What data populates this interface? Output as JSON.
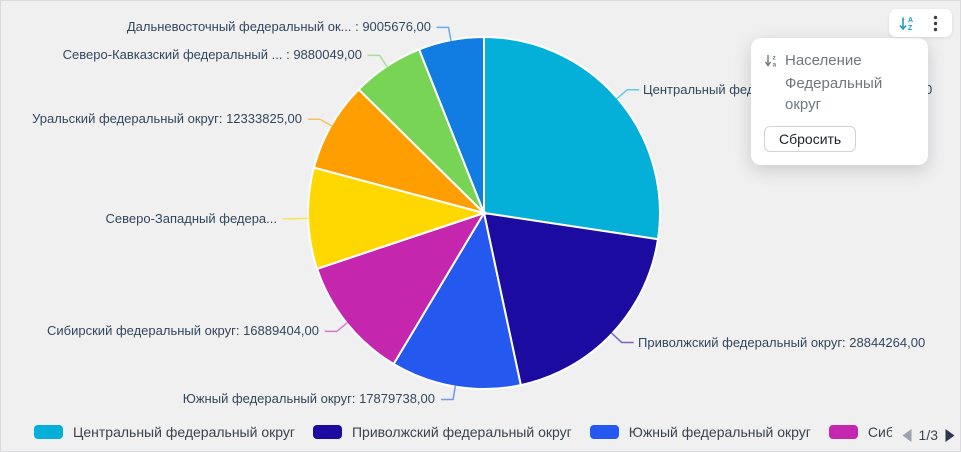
{
  "ui_colors": {
    "background": "#f0f0f1",
    "slice_label_text": "#33475c",
    "panel_text": "#6f7780",
    "toolbar_sort_icon": "#1d9bc9",
    "toolbar_menu_icon": "#3c4043",
    "pagination_left_arrow": "#9aa2ae",
    "pagination_right_arrow": "#2c3a4b"
  },
  "sort_panel": {
    "sort_item": {
      "label": "Население"
    },
    "field_item": {
      "label": "Федеральный округ"
    },
    "reset_button_label": "Сбросить"
  },
  "chart_data": {
    "type": "pie",
    "direction": "clockwise",
    "start_angle": "top",
    "value_format": "#,00",
    "slices": [
      {
        "name": "Центральный федеральный округ",
        "value": 41000000,
        "estimated": true,
        "display_label": "Центральный федеральный округ: 41000000,00",
        "color": "#04afd8"
      },
      {
        "name": "Приволжский федеральный округ",
        "value": 28844264,
        "estimated": false,
        "display_label": "Приволжский федеральный округ: 28844264,00",
        "color": "#1b0ba0"
      },
      {
        "name": "Южный федеральный округ",
        "value": 17879738,
        "estimated": false,
        "display_label": "Южный федеральный округ: 17879738,00",
        "color": "#2458ee"
      },
      {
        "name": "Сибирский федеральный округ",
        "value": 16889404,
        "estimated": false,
        "display_label": "Сибирский федеральный округ: 16889404,00",
        "color": "#c427ae"
      },
      {
        "name": "Северо-Западный федеральный округ",
        "value": 13900000,
        "estimated": true,
        "display_label": "Северо-Западный федера...",
        "color": "#ffd802"
      },
      {
        "name": "Уральский федеральный округ",
        "value": 12333825,
        "estimated": false,
        "display_label": "Уральский федеральный округ: 12333825,00",
        "color": "#ff9e01"
      },
      {
        "name": "Северо-Кавказский федеральный округ",
        "value": 9880049,
        "estimated": false,
        "display_label": "Северо-Кавказский федеральный ... : 9880049,00",
        "color": "#77d455"
      },
      {
        "name": "Дальневосточный федеральный округ",
        "value": 9005676,
        "estimated": false,
        "display_label": "Дальневосточный федеральный ок... : 9005676,00",
        "color": "#117ce2"
      }
    ]
  },
  "legend": {
    "items": [
      {
        "label": "Центральный федеральный округ",
        "color": "#04afd8"
      },
      {
        "label": "Приволжский федеральный округ",
        "color": "#1b0ba0"
      },
      {
        "label": "Южный федеральный округ",
        "color": "#2458ee"
      },
      {
        "label": "Сибирский федеральный округ",
        "color": "#c427ae"
      }
    ],
    "pagination": {
      "page_label": "1/3"
    }
  }
}
